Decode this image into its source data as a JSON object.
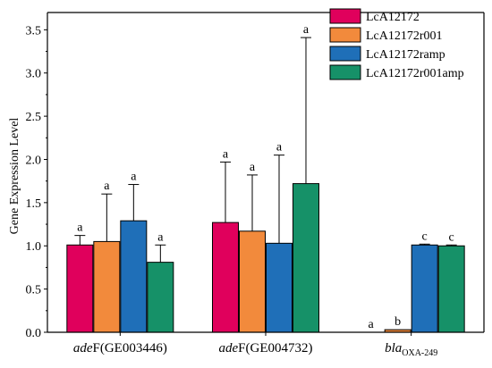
{
  "chart_data": {
    "type": "bar",
    "ylabel": "Gene Expression Level",
    "xlabel": "",
    "ylim": [
      0,
      3.7
    ],
    "yticks": [
      "0.0",
      "0.5",
      "1.0",
      "1.5",
      "2.0",
      "2.5",
      "3.0",
      "3.5"
    ],
    "grid": false,
    "legend_position": "top-right",
    "categories": [
      {
        "italic": "ade",
        "normal": "F(GE003446)",
        "sub": ""
      },
      {
        "italic": "ade",
        "normal": "F(GE004732)",
        "sub": ""
      },
      {
        "italic": "bla",
        "normal": "",
        "sub": "OXA-249"
      }
    ],
    "series": [
      {
        "name": "LcA12172",
        "color": "#e0005c",
        "values": [
          1.01,
          1.27,
          0.0
        ],
        "errors": [
          0.11,
          0.7,
          0.0
        ],
        "labels": [
          "a",
          "a",
          "a"
        ]
      },
      {
        "name": "LcA12172r001",
        "color": "#f28a3c",
        "values": [
          1.05,
          1.17,
          0.03
        ],
        "errors": [
          0.55,
          0.65,
          0.0
        ],
        "labels": [
          "a",
          "a",
          "b"
        ]
      },
      {
        "name": "LcA12172ramp",
        "color": "#1f6fb8",
        "values": [
          1.29,
          1.03,
          1.01
        ],
        "errors": [
          0.42,
          1.02,
          0.01
        ],
        "labels": [
          "a",
          "a",
          "c"
        ]
      },
      {
        "name": "LcA12172r001amp",
        "color": "#169168",
        "values": [
          0.81,
          1.72,
          1.0
        ],
        "errors": [
          0.2,
          1.69,
          0.01
        ],
        "labels": [
          "a",
          "a",
          "c"
        ]
      }
    ]
  }
}
